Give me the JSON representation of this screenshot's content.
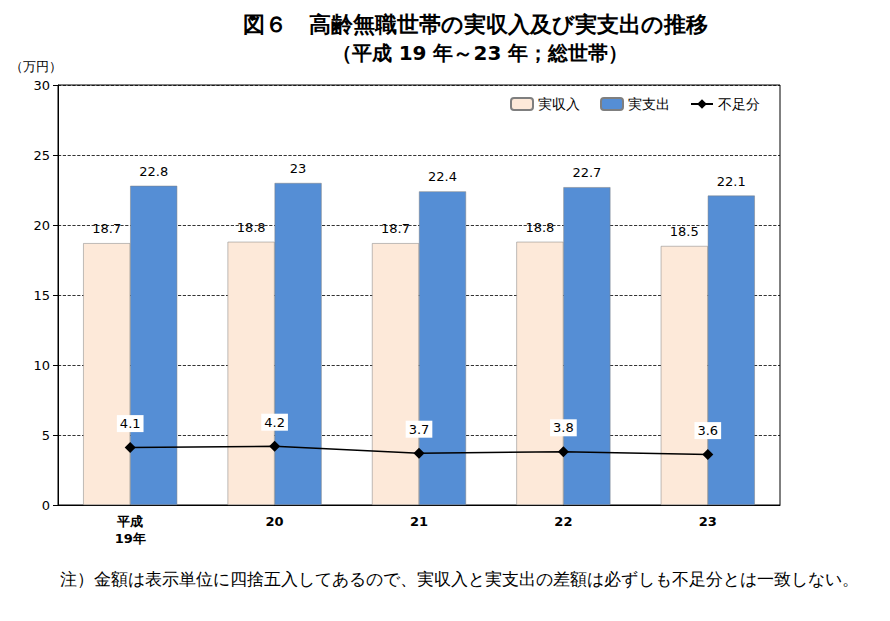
{
  "chart_data": {
    "type": "bar",
    "title": "図６　高齢無職世帯の実収入及び実支出の推移",
    "subtitle": "（平成 19 年～23 年；総世帯）",
    "y_label": "（万円）",
    "note": "注）金額は表示単位に四捨五入してあるので、実収入と実支出の差額は必ずしも不足分とは一致しない。",
    "categories": [
      "平成\n19年",
      "20",
      "21",
      "22",
      "23"
    ],
    "series": [
      {
        "name": "実収入",
        "type": "bar",
        "color": "#fde9d9",
        "values": [
          18.7,
          18.8,
          18.7,
          18.8,
          18.5
        ]
      },
      {
        "name": "実支出",
        "type": "bar",
        "color": "#558ed5",
        "values": [
          22.8,
          23.0,
          22.4,
          22.7,
          22.1
        ]
      },
      {
        "name": "不足分",
        "type": "line",
        "color": "#000000",
        "marker": "diamond",
        "values": [
          4.1,
          4.2,
          3.7,
          3.8,
          3.6
        ]
      }
    ],
    "ylim": [
      0,
      30
    ],
    "yticks": [
      0,
      5,
      10,
      15,
      20,
      25,
      30
    ],
    "grid": true,
    "legend": "top-right",
    "data_labels": true
  }
}
